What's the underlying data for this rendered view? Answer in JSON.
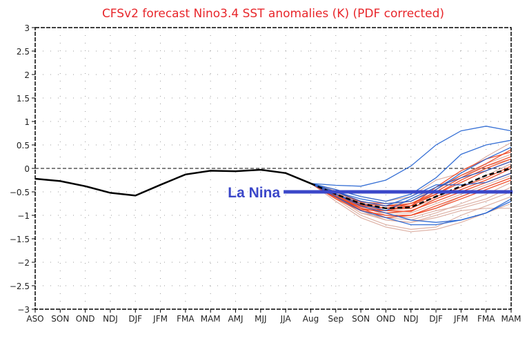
{
  "chart_data": {
    "type": "line",
    "title": "CFSv2 forecast Nino3.4 SST anomalies (K) (PDF corrected)",
    "xlabel": "",
    "ylabel": "",
    "ylim": [
      -3,
      3
    ],
    "yticks": [
      3,
      2.5,
      2,
      1.5,
      1,
      0.5,
      0,
      -0.5,
      -1,
      -1.5,
      -2,
      -2.5,
      -3
    ],
    "ytick_labels": [
      "3",
      "2.5",
      "2",
      "1.5",
      "1",
      "0.5",
      "0",
      "-0.5",
      "-1",
      "-1.5",
      "-2",
      "-2.5",
      "-3"
    ],
    "categories": [
      "ASO",
      "SON",
      "OND",
      "NDJ",
      "DJF",
      "JFM",
      "FMA",
      "MAM",
      "AMJ",
      "MJJ",
      "JJA",
      "Aug",
      "Sep",
      "SON",
      "OND",
      "NDJ",
      "DJF",
      "JFM",
      "FMA",
      "MAM"
    ],
    "grid": true,
    "zero_line": true,
    "observed": {
      "name": "Observed",
      "color": "#000000",
      "values": [
        -0.22,
        -0.27,
        -0.38,
        -0.52,
        -0.58,
        -0.35,
        -0.13,
        -0.05,
        -0.06,
        -0.03,
        -0.1,
        -0.32
      ]
    },
    "ensemble_mean": {
      "name": "Ensemble mean",
      "color": "#000000",
      "start_index": 11,
      "values": [
        -0.32,
        -0.55,
        -0.75,
        -0.85,
        -0.83,
        -0.6,
        -0.38,
        -0.15,
        0.0
      ]
    },
    "members": [
      {
        "color": "#1f5fd0",
        "start_index": 11,
        "values": [
          -0.32,
          -0.36,
          -0.38,
          -0.25,
          0.05,
          0.5,
          0.8,
          0.9,
          0.8
        ]
      },
      {
        "color": "#1f5fd0",
        "start_index": 11,
        "values": [
          -0.32,
          -0.45,
          -0.6,
          -0.7,
          -0.55,
          -0.2,
          0.3,
          0.5,
          0.6
        ]
      },
      {
        "color": "#1f5fd0",
        "start_index": 11,
        "values": [
          -0.32,
          -0.5,
          -0.65,
          -0.75,
          -0.7,
          -0.45,
          -0.1,
          0.2,
          0.45
        ]
      },
      {
        "color": "#1f5fd0",
        "start_index": 11,
        "values": [
          -0.32,
          -0.55,
          -0.8,
          -0.95,
          -1.1,
          -1.15,
          -1.1,
          -0.95,
          -0.65
        ]
      },
      {
        "color": "#1f5fd0",
        "start_index": 11,
        "values": [
          -0.32,
          -0.6,
          -0.9,
          -1.05,
          -1.2,
          -1.2,
          -1.1,
          -0.95,
          -0.7
        ]
      },
      {
        "color": "#1f5fd0",
        "start_index": 11,
        "values": [
          -0.32,
          -0.5,
          -0.7,
          -0.8,
          -0.6,
          -0.35,
          -0.35,
          -0.3,
          -0.1
        ]
      },
      {
        "color": "#1f5fd0",
        "start_index": 11,
        "values": [
          -0.32,
          -0.55,
          -0.75,
          -0.9,
          -0.65,
          -0.4,
          -0.2,
          -0.05,
          0.15
        ]
      },
      {
        "color": "#f0401c",
        "start_index": 11,
        "values": [
          -0.32,
          -0.5,
          -0.7,
          -0.8,
          -0.8,
          -0.4,
          -0.05,
          0.2,
          0.35
        ]
      },
      {
        "color": "#f0401c",
        "start_index": 11,
        "values": [
          -0.32,
          -0.55,
          -0.78,
          -0.85,
          -0.75,
          -0.5,
          -0.2,
          0.05,
          0.25
        ]
      },
      {
        "color": "#f0401c",
        "start_index": 11,
        "values": [
          -0.32,
          -0.6,
          -0.82,
          -0.9,
          -0.8,
          -0.55,
          -0.3,
          -0.05,
          0.15
        ]
      },
      {
        "color": "#f0401c",
        "start_index": 11,
        "values": [
          -0.32,
          -0.58,
          -0.8,
          -0.85,
          -0.85,
          -0.6,
          -0.4,
          -0.2,
          0.05
        ]
      },
      {
        "color": "#f0401c",
        "start_index": 11,
        "values": [
          -0.32,
          -0.62,
          -0.85,
          -0.95,
          -0.9,
          -0.7,
          -0.5,
          -0.3,
          -0.1
        ]
      },
      {
        "color": "#f0401c",
        "start_index": 11,
        "values": [
          -0.32,
          -0.65,
          -0.9,
          -1.0,
          -1.0,
          -0.8,
          -0.6,
          -0.4,
          -0.2
        ]
      },
      {
        "color": "#f0401c",
        "start_index": 11,
        "values": [
          -0.32,
          -0.5,
          -0.72,
          -0.75,
          -0.7,
          -0.45,
          -0.15,
          0.1,
          0.4
        ]
      },
      {
        "color": "#f0401c",
        "start_index": 11,
        "values": [
          -0.32,
          -0.55,
          -0.75,
          -0.8,
          -0.75,
          -0.55,
          -0.25,
          0.0,
          0.2
        ]
      },
      {
        "color": "#f0401c",
        "start_index": 11,
        "values": [
          -0.32,
          -0.62,
          -0.88,
          -0.9,
          -0.92,
          -0.65,
          -0.45,
          -0.25,
          0.0
        ]
      },
      {
        "color": "#f0401c",
        "start_index": 11,
        "values": [
          -0.32,
          -0.6,
          -0.85,
          -1.05,
          -1.0,
          -0.85,
          -0.65,
          -0.45,
          -0.25
        ]
      },
      {
        "color": "#d9a79a",
        "start_index": 11,
        "values": [
          -0.32,
          -0.45,
          -0.6,
          -0.7,
          -0.6,
          -0.25,
          -0.1,
          0.25,
          0.55
        ]
      },
      {
        "color": "#d9a79a",
        "start_index": 11,
        "values": [
          -0.32,
          -0.55,
          -0.8,
          -1.0,
          -1.05,
          -0.9,
          -0.8,
          -0.65,
          -0.4
        ]
      },
      {
        "color": "#d9a79a",
        "start_index": 11,
        "values": [
          -0.32,
          -0.6,
          -0.9,
          -1.1,
          -1.15,
          -1.0,
          -0.85,
          -0.7,
          -0.5
        ]
      },
      {
        "color": "#d9a79a",
        "start_index": 11,
        "values": [
          -0.32,
          -0.65,
          -1.0,
          -1.2,
          -1.3,
          -1.25,
          -1.0,
          -0.8,
          -0.6
        ]
      },
      {
        "color": "#d9a79a",
        "start_index": 11,
        "values": [
          -0.32,
          -0.7,
          -1.05,
          -1.25,
          -1.35,
          -1.3,
          -1.15,
          -0.95,
          -0.75
        ]
      },
      {
        "color": "#d9a79a",
        "start_index": 11,
        "values": [
          -0.32,
          -0.6,
          -0.95,
          -1.05,
          -1.1,
          -0.95,
          -0.75,
          -0.55,
          -0.3
        ]
      },
      {
        "color": "#d9a79a",
        "start_index": 11,
        "values": [
          -0.32,
          -0.55,
          -0.85,
          -0.95,
          -0.95,
          -0.75,
          -0.55,
          -0.35,
          -0.15
        ]
      },
      {
        "color": "#d9a79a",
        "start_index": 11,
        "values": [
          -0.32,
          -0.5,
          -0.75,
          -0.85,
          -0.8,
          -0.5,
          -0.2,
          0.1,
          0.3
        ]
      },
      {
        "color": "#d9a79a",
        "start_index": 11,
        "values": [
          -0.32,
          -0.58,
          -0.9,
          -1.0,
          -1.0,
          -0.85,
          -0.6,
          -0.4,
          -0.2
        ]
      },
      {
        "color": "#d9a79a",
        "start_index": 11,
        "values": [
          -0.32,
          -0.62,
          -0.95,
          -1.1,
          -1.15,
          -1.05,
          -0.9,
          -0.85,
          -0.85
        ]
      },
      {
        "color": "#d9a79a",
        "start_index": 11,
        "values": [
          -0.32,
          -0.52,
          -0.78,
          -0.9,
          -0.85,
          -0.65,
          -0.4,
          -0.15,
          0.1
        ]
      },
      {
        "color": "#d9a79a",
        "start_index": 11,
        "values": [
          -0.32,
          -0.48,
          -0.7,
          -0.8,
          -0.7,
          -0.4,
          -0.15,
          0.05,
          0.2
        ]
      }
    ],
    "annotation": {
      "text": "La Nina",
      "color": "#3b47c9",
      "value": -0.5,
      "x_start_category_index": 10,
      "x_end_category_index": 19
    }
  }
}
